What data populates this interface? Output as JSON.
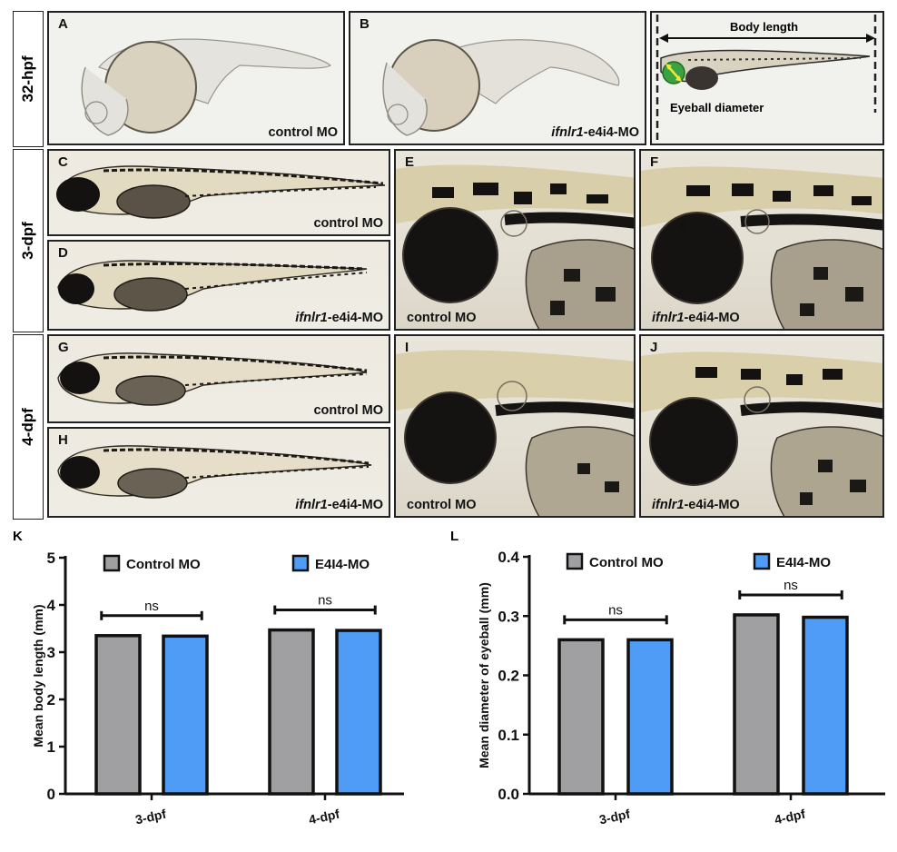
{
  "rows": {
    "r1": "32-hpf",
    "r2": "3-dpf",
    "r3": "4-dpf"
  },
  "panels": {
    "A": {
      "letter": "A",
      "caption": "control MO"
    },
    "B": {
      "letter": "B",
      "caption_italic": "ifnlr1",
      "caption_rest": "-e4i4-MO"
    },
    "C_measure": {
      "body_length": "Body length",
      "eyeball_diameter": "Eyeball diameter"
    },
    "C": {
      "letter": "C",
      "caption": "control MO"
    },
    "D": {
      "letter": "D",
      "caption_italic": "ifnlr1",
      "caption_rest": "-e4i4-MO"
    },
    "E": {
      "letter": "E",
      "caption": "control MO"
    },
    "F": {
      "letter": "F",
      "caption_italic": "ifnlr1",
      "caption_rest": "-e4i4-MO"
    },
    "G": {
      "letter": "G",
      "caption": "control MO"
    },
    "H": {
      "letter": "H",
      "caption_italic": "ifnlr1",
      "caption_rest": "-e4i4-MO"
    },
    "I": {
      "letter": "I",
      "caption": "control MO"
    },
    "J": {
      "letter": "J",
      "caption_italic": "ifnlr1",
      "caption_rest": "-e4i4-MO"
    }
  },
  "colors": {
    "control": "#a09fa2",
    "e4i4": "#4f9cf7",
    "axis": "#111111"
  },
  "chart_data": [
    {
      "panel": "K",
      "type": "bar",
      "categories": [
        "3-dpf",
        "4-dpf"
      ],
      "series": [
        {
          "name": "Control MO",
          "values": [
            3.35,
            3.47
          ]
        },
        {
          "name": "E4I4-MO",
          "values": [
            3.34,
            3.46
          ]
        }
      ],
      "significance": [
        "ns",
        "ns"
      ],
      "ylabel": "Mean body length (mm)",
      "ylim": [
        0,
        5
      ],
      "yticks": [
        "0",
        "1",
        "2",
        "3",
        "4",
        "5"
      ],
      "legend": "top"
    },
    {
      "panel": "L",
      "type": "bar",
      "categories": [
        "3-dpf",
        "4-dpf"
      ],
      "series": [
        {
          "name": "Control MO",
          "values": [
            0.26,
            0.302
          ]
        },
        {
          "name": "E4I4-MO",
          "values": [
            0.26,
            0.298
          ]
        }
      ],
      "significance": [
        "ns",
        "ns"
      ],
      "ylabel": "Mean diameter of eyeball (mm)",
      "ylim": [
        0,
        0.4
      ],
      "yticks": [
        "0.0",
        "0.1",
        "0.2",
        "0.3",
        "0.4"
      ],
      "legend": "top"
    }
  ]
}
